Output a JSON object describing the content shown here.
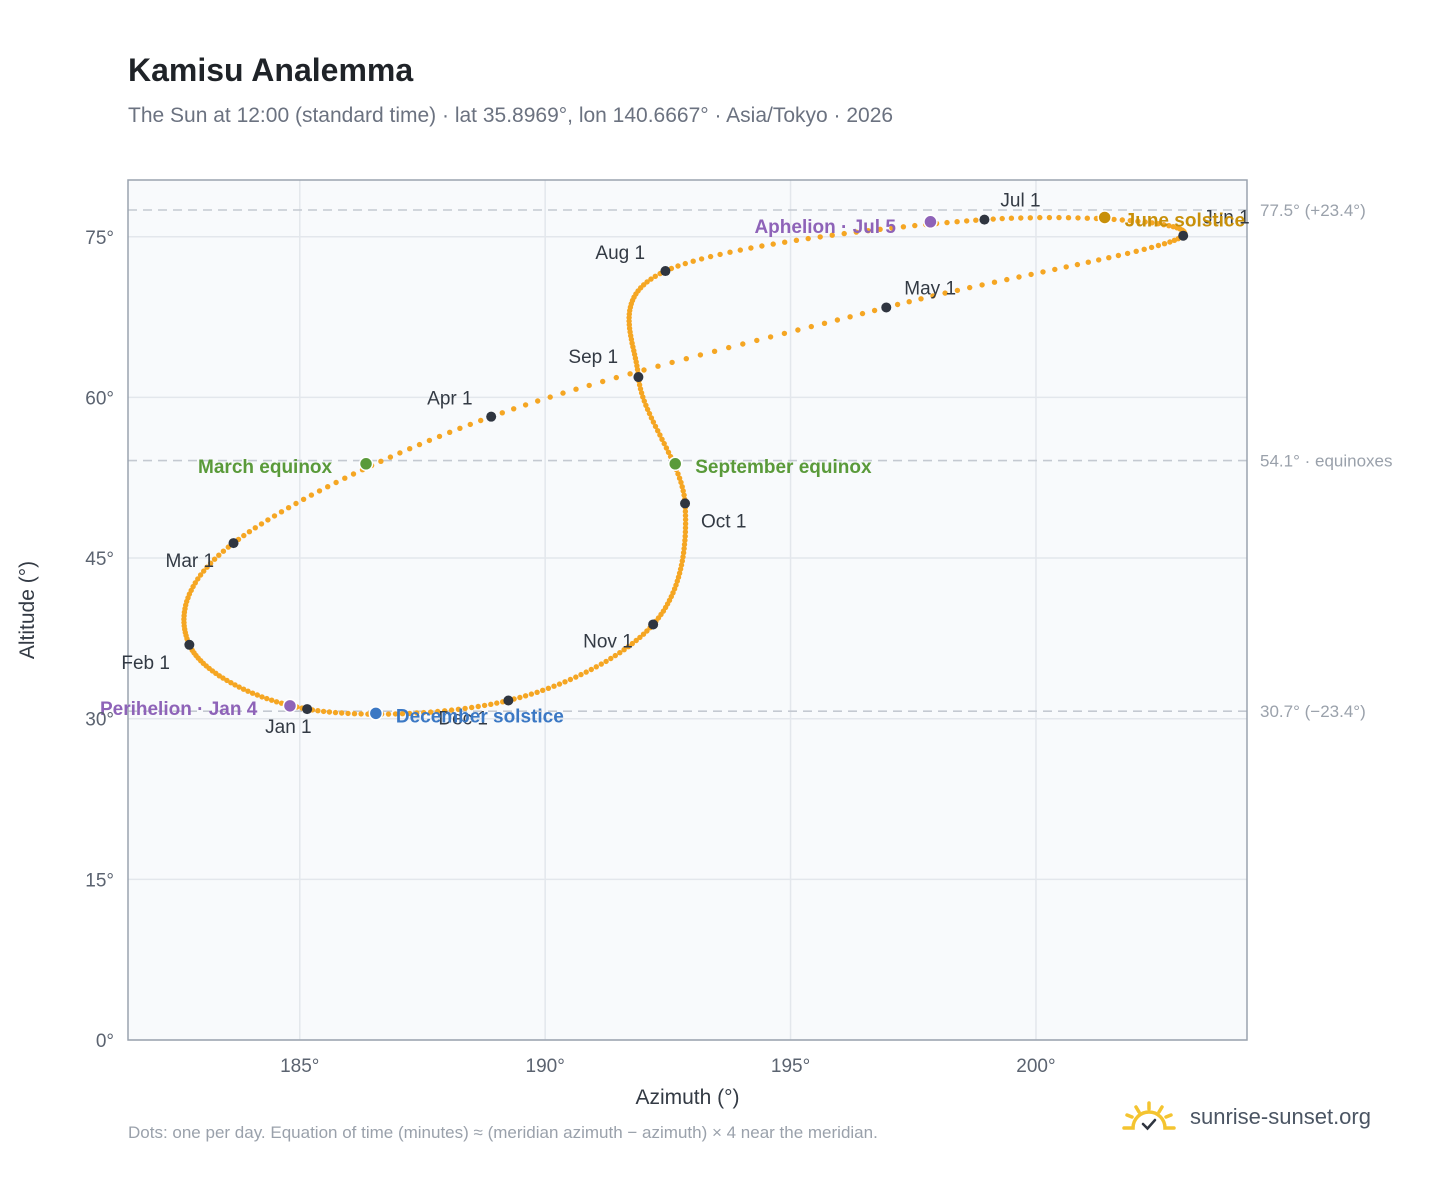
{
  "header": {
    "title": "Kamisu Analemma",
    "subtitle": "The Sun at 12:00 (standard time) · lat 35.8969°, lon 140.6667° · Asia/Tokyo · 2026"
  },
  "footer": {
    "note": "Dots: one per day. Equation of time (minutes) ≈ (meridian azimuth − azimuth) × 4 near the meridian.",
    "brand": "sunrise-sunset.org"
  },
  "colors": {
    "path": "#f5a623",
    "month_dot": "#2f3540",
    "equinox": "#5a9a3a",
    "june_solstice": "#c8900a",
    "december_solstice": "#3b78c4",
    "apsis": "#8e63b8",
    "reference_line": "#c4c9d1",
    "plot_bg": "#f8fafc",
    "grid": "#e3e7ec",
    "frame": "#9aa3af"
  },
  "chart_data": {
    "type": "scatter",
    "xlabel": "Azimuth (°)",
    "ylabel": "Altitude (°)",
    "xlim": [
      181.5,
      204.3
    ],
    "ylim": [
      0,
      80.3
    ],
    "x_ticks": [
      185,
      190,
      195,
      200
    ],
    "y_ticks": [
      0,
      15,
      30,
      45,
      60,
      75
    ],
    "x_tick_labels": [
      "185°",
      "190°",
      "195°",
      "200°"
    ],
    "y_tick_labels": [
      "0°",
      "15°",
      "30°",
      "45°",
      "60°",
      "75°"
    ],
    "grid": true,
    "reference_lines": [
      {
        "altitude": 77.5,
        "label": "77.5° (+23.4°)"
      },
      {
        "altitude": 54.1,
        "label": "54.1° · equinoxes"
      },
      {
        "altitude": 30.7,
        "label": "30.7° (−23.4°)"
      }
    ],
    "month_markers": [
      {
        "label": "Jan 1",
        "az": 185.15,
        "alt": 30.9
      },
      {
        "label": "Feb 1",
        "az": 182.75,
        "alt": 36.9
      },
      {
        "label": "Mar 1",
        "az": 183.65,
        "alt": 46.4
      },
      {
        "label": "Apr 1",
        "az": 188.9,
        "alt": 58.2
      },
      {
        "label": "May 1",
        "az": 196.95,
        "alt": 68.4
      },
      {
        "label": "Jun 1",
        "az": 203.0,
        "alt": 75.1
      },
      {
        "label": "Jul 1",
        "az": 198.95,
        "alt": 76.6
      },
      {
        "label": "Aug 1",
        "az": 192.45,
        "alt": 71.8
      },
      {
        "label": "Sep 1",
        "az": 191.9,
        "alt": 61.9
      },
      {
        "label": "Oct 1",
        "az": 192.85,
        "alt": 50.1
      },
      {
        "label": "Nov 1",
        "az": 192.2,
        "alt": 38.8
      },
      {
        "label": "Dec 1",
        "az": 189.25,
        "alt": 31.7
      }
    ],
    "events": [
      {
        "label": "March equinox",
        "az": 186.35,
        "alt": 53.8,
        "kind": "equinox"
      },
      {
        "label": "September equinox",
        "az": 192.65,
        "alt": 53.8,
        "kind": "equinox"
      },
      {
        "label": "June solstice",
        "az": 201.4,
        "alt": 76.8,
        "kind": "june_solstice"
      },
      {
        "label": "December solstice",
        "az": 186.55,
        "alt": 30.5,
        "kind": "december_solstice"
      },
      {
        "label": "Perihelion · Jan 4",
        "az": 184.8,
        "alt": 31.2,
        "kind": "apsis"
      },
      {
        "label": "Aphelion · Jul 5",
        "az": 197.85,
        "alt": 76.4,
        "kind": "apsis"
      }
    ]
  }
}
